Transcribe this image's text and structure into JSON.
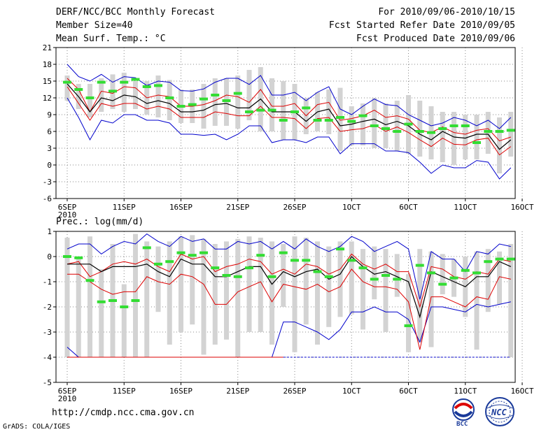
{
  "header": {
    "title": "DERF/NCC/BCC Monthly Forecast",
    "member_size": "Member Size=40",
    "variable": "Mean Surf. Temp.: °C",
    "period": "For 2010/09/06-2010/10/15",
    "fcst_started": "Fcst Started Refer Date 2010/09/05",
    "fcst_produced": "Fcst Produced Date 2010/09/06"
  },
  "footer": {
    "url": "http://cmdp.ncc.cma.gov.cn",
    "credit": "GrADS: COLA/IGES",
    "logo_bcc": "BCC",
    "logo_ncc": "NCC"
  },
  "colors": {
    "max_min": "#0000cc",
    "spread": "#dd0000",
    "mean": "#000000",
    "observed": "#33dd33",
    "bar": "#d3d3d3"
  },
  "chart_data": [
    {
      "type": "line",
      "title": "Mean Surf. Temp.: °C",
      "xlabel": "",
      "ylabel": "",
      "x_tick_labels": [
        "6SEP",
        "11SEP",
        "16SEP",
        "21SEP",
        "26SEP",
        "1OCT",
        "6OCT",
        "11OCT",
        "16OCT"
      ],
      "x_tick_days": [
        0,
        5,
        10,
        15,
        20,
        25,
        30,
        35,
        40
      ],
      "year_label": "2010",
      "ylim": [
        -6,
        21
      ],
      "y_ticks": [
        -6,
        -3,
        0,
        3,
        6,
        9,
        12,
        15,
        18,
        21
      ],
      "grid": true,
      "days": [
        0,
        1,
        2,
        3,
        4,
        5,
        6,
        7,
        8,
        9,
        10,
        11,
        12,
        13,
        14,
        15,
        16,
        17,
        18,
        19,
        20,
        21,
        22,
        23,
        24,
        25,
        26,
        27,
        28,
        29,
        30,
        31,
        32,
        33,
        34,
        35,
        36,
        37,
        38,
        39
      ],
      "series": [
        {
          "name": "max",
          "values": [
            18,
            15.8,
            15,
            16.2,
            14.8,
            15.8,
            15.6,
            14.2,
            15,
            14.8,
            13.3,
            13.2,
            13.6,
            14.8,
            15.5,
            15.5,
            14.4,
            16,
            12.5,
            12.5,
            13,
            11.5,
            13,
            14,
            10,
            9,
            10.5,
            11.8,
            10.8,
            10.6,
            9,
            8,
            7,
            7.5,
            8.5,
            8,
            7,
            8,
            6.5,
            8.5
          ]
        },
        {
          "name": "upper_spread",
          "values": [
            15.5,
            13.5,
            9.5,
            13.2,
            12.8,
            14,
            13.8,
            12,
            12.5,
            12.2,
            10.5,
            10.5,
            10.8,
            11.5,
            12.5,
            12.2,
            11.2,
            13.5,
            10.5,
            10.5,
            11,
            8.8,
            10.8,
            11.2,
            8,
            8.3,
            8.8,
            9.8,
            8.5,
            8.8,
            8.2,
            6.2,
            5.8,
            6.8,
            5.8,
            5.5,
            6.2,
            6.5,
            4.3,
            5
          ]
        },
        {
          "name": "mean",
          "values": [
            14.5,
            12.2,
            9.5,
            12,
            11.5,
            12.5,
            12.2,
            11,
            11.5,
            11,
            9.5,
            9.5,
            9.8,
            10.8,
            11,
            10.2,
            10.2,
            11.8,
            9.5,
            9.5,
            9.5,
            7.8,
            9.5,
            10,
            7,
            7.3,
            7.8,
            8.2,
            7.2,
            7.8,
            7,
            5.5,
            4.5,
            6,
            5,
            4.8,
            5.5,
            5.5,
            2.8,
            4.5
          ]
        },
        {
          "name": "lower_spread",
          "values": [
            14,
            11,
            8,
            11,
            10.5,
            11,
            11,
            10,
            10.5,
            10,
            8.5,
            8.5,
            8.5,
            9.5,
            9.2,
            8.8,
            8.8,
            10.5,
            8.5,
            8.5,
            8.3,
            6.5,
            8.3,
            8.5,
            6,
            6.3,
            6.5,
            7.2,
            6,
            6.8,
            5.8,
            4.5,
            3.3,
            4.8,
            3.7,
            3.6,
            4.5,
            4.8,
            1.8,
            3.3
          ]
        },
        {
          "name": "min",
          "values": [
            12,
            8.5,
            4.5,
            8,
            7.5,
            9,
            9,
            8,
            8,
            7.5,
            5.5,
            5.5,
            5.3,
            5.5,
            4.5,
            5.5,
            7,
            7,
            4,
            4.5,
            4.5,
            4,
            5,
            5,
            2,
            3.8,
            3.8,
            3.8,
            2.5,
            2.5,
            2.2,
            0.5,
            -1.5,
            0,
            -0.5,
            -0.5,
            0.8,
            0.5,
            -2.5,
            -0.5
          ]
        },
        {
          "name": "observed",
          "values": [
            14.8,
            13.5,
            12,
            14.8,
            13.2,
            14.8,
            15.3,
            14,
            14.2,
            12,
            10.5,
            10.8,
            11.8,
            12.5,
            11.5,
            12.8,
            9.5,
            9.8,
            9.8,
            8,
            9.5,
            10.2,
            8,
            8,
            8.5,
            7.8,
            8.8,
            7,
            6.5,
            6,
            7.3,
            6,
            5.8,
            6.5,
            7,
            7,
            4,
            6,
            6,
            6.2
          ]
        },
        {
          "name": "bar_top",
          "values": [
            16,
            14.5,
            14.5,
            15.5,
            16.2,
            16.5,
            15,
            15,
            16,
            15.2,
            13.5,
            13.5,
            14.5,
            15.5,
            15.5,
            16,
            17,
            17.5,
            15.5,
            15,
            14.5,
            12,
            13,
            13.5,
            13.8,
            10.5,
            11,
            12,
            11,
            11.5,
            12.5,
            11.5,
            10.5,
            9.5,
            9.5,
            9,
            9,
            9.5,
            8.5,
            9.5
          ]
        },
        {
          "name": "bar_bottom",
          "values": [
            11.5,
            10,
            8.5,
            9.5,
            10,
            9.5,
            10,
            9,
            8.5,
            8,
            7.5,
            7.5,
            6.5,
            7,
            7,
            6.5,
            8,
            6,
            6,
            4.5,
            4.5,
            5.5,
            6,
            5.5,
            2.5,
            3.5,
            3.5,
            3,
            3,
            2.5,
            2,
            1.5,
            1,
            0.5,
            0,
            1,
            1,
            2,
            -1.5,
            1.5
          ]
        }
      ]
    },
    {
      "type": "line",
      "title": "Prec.: log(mm/d)",
      "xlabel": "",
      "ylabel": "",
      "x_tick_labels": [
        "6SEP",
        "11SEP",
        "16SEP",
        "21SEP",
        "26SEP",
        "1OCT",
        "6OCT",
        "11OCT",
        "16OCT"
      ],
      "x_tick_days": [
        0,
        5,
        10,
        15,
        20,
        25,
        30,
        35,
        40
      ],
      "year_label": "2010",
      "ylim": [
        -5,
        1
      ],
      "y_ticks": [
        -5,
        -4,
        -3,
        -2,
        -1,
        0,
        1
      ],
      "grid": true,
      "days": [
        0,
        1,
        2,
        3,
        4,
        5,
        6,
        7,
        8,
        9,
        10,
        11,
        12,
        13,
        14,
        15,
        16,
        17,
        18,
        19,
        20,
        21,
        22,
        23,
        24,
        25,
        26,
        27,
        28,
        29,
        30,
        31,
        32,
        33,
        34,
        35,
        36,
        37,
        38,
        39
      ],
      "series": [
        {
          "name": "max",
          "values": [
            0.3,
            0.5,
            0.5,
            0.1,
            0.4,
            0.6,
            0.5,
            0.9,
            0.6,
            0.4,
            0.8,
            0.6,
            0.7,
            0.3,
            0.3,
            0.6,
            0.5,
            0.6,
            0.3,
            0.6,
            0.3,
            0.7,
            0.4,
            0.2,
            0.4,
            0.8,
            0.6,
            0.2,
            0.4,
            0.6,
            0.3,
            -1.7,
            0.2,
            -0.1,
            -0.1,
            -0.6,
            0.2,
            0.1,
            0.5,
            0.4
          ]
        },
        {
          "name": "upper_spread",
          "values": [
            -0.3,
            -0.2,
            -0.8,
            -0.6,
            -0.3,
            -0.2,
            -0.3,
            -0.1,
            -0.4,
            -0.6,
            0.1,
            -0.1,
            0.0,
            -0.6,
            -0.4,
            -0.3,
            -0.1,
            -0.2,
            -0.7,
            -0.5,
            -0.7,
            -0.3,
            -0.4,
            -0.7,
            -0.5,
            0.1,
            -0.3,
            -0.5,
            -0.3,
            -0.6,
            -0.6,
            -2.0,
            -0.4,
            -0.5,
            -0.8,
            -0.9,
            -0.6,
            -0.7,
            -0.1,
            -0.2
          ]
        },
        {
          "name": "mean",
          "values": [
            -0.3,
            -0.3,
            -0.3,
            -0.6,
            -0.4,
            -0.4,
            -0.4,
            -0.3,
            -0.6,
            -0.8,
            -0.1,
            -0.3,
            -0.3,
            -0.8,
            -0.8,
            -0.6,
            -0.4,
            -0.4,
            -1.1,
            -0.6,
            -0.8,
            -0.6,
            -0.5,
            -0.9,
            -0.7,
            0.0,
            -0.4,
            -0.7,
            -0.6,
            -0.8,
            -1.0,
            -2.4,
            -0.6,
            -0.8,
            -1.0,
            -1.2,
            -0.8,
            -0.8,
            -0.2,
            -0.4
          ]
        },
        {
          "name": "lower_spread",
          "values": [
            -0.7,
            -0.7,
            -1.0,
            -1.3,
            -1.5,
            -1.4,
            -1.4,
            -0.8,
            -1.0,
            -1.1,
            -0.7,
            -0.8,
            -1.1,
            -1.9,
            -1.9,
            -1.4,
            -1.2,
            -1.0,
            -1.8,
            -1.1,
            -1.2,
            -1.3,
            -1.1,
            -1.4,
            -1.2,
            -0.5,
            -1.0,
            -1.2,
            -1.2,
            -1.3,
            -1.8,
            -3.7,
            -1.6,
            -1.6,
            -1.8,
            -2.0,
            -1.6,
            -1.7,
            -0.8,
            -0.9
          ]
        },
        {
          "name": "min",
          "values": [
            -3.6,
            -4,
            -4,
            -4,
            -4,
            -4,
            -4,
            -4,
            -4,
            -4,
            -4,
            -4,
            -4,
            -4,
            -4,
            -4,
            -4,
            -4,
            -4,
            -2.6,
            -2.6,
            -2.8,
            -3.0,
            -3.3,
            -2.9,
            -2.2,
            -2.2,
            -2.0,
            -2.2,
            -2.2,
            -2.5,
            -3.4,
            -2.0,
            -2.0,
            -2.1,
            -2.2,
            -1.9,
            -2.0,
            -1.9,
            -1.8
          ]
        },
        {
          "name": "floor",
          "values": [
            -4,
            -4,
            -4,
            -4,
            -4,
            -4,
            -4,
            -4,
            -4,
            -4,
            -4,
            -4,
            -4,
            -4,
            -4,
            -4,
            -4,
            -4,
            -4,
            -4,
            -4,
            -4,
            -4,
            -4,
            -4,
            -4,
            -4,
            -4,
            -4,
            -4,
            -4,
            -4,
            -4,
            -4,
            -4,
            -4,
            -4,
            -4,
            -4,
            -4
          ]
        },
        {
          "name": "observed",
          "values": [
            0.0,
            -0.05,
            -0.95,
            -1.8,
            -1.75,
            -2.0,
            -1.75,
            0.35,
            -0.3,
            -0.2,
            0.15,
            0.05,
            0.15,
            -0.45,
            -0.75,
            -0.8,
            -0.45,
            0.05,
            -0.8,
            0.15,
            -0.15,
            -0.15,
            -0.6,
            -0.8,
            0.3,
            -0.15,
            -0.45,
            -0.9,
            -0.75,
            -0.9,
            -2.75,
            -0.35,
            -0.65,
            -1.1,
            -0.85,
            -0.55,
            -0.65,
            -0.2,
            -0.1,
            -0.1
          ]
        },
        {
          "name": "bar_top",
          "values": [
            0.75,
            0.0,
            0.8,
            -0.5,
            0.5,
            -1.1,
            0.9,
            0.6,
            0.4,
            0.6,
            0.8,
            0.85,
            0.7,
            0.5,
            0.6,
            0.7,
            0.8,
            0.75,
            0.6,
            0.5,
            0.8,
            0.75,
            0.6,
            0.4,
            0.6,
            0.6,
            0.3,
            0.4,
            0.3,
            0.1,
            -0.7,
            0.3,
            0.2,
            0.1,
            -0.1,
            0.0,
            0.2,
            0.3,
            0.2,
            0.5
          ]
        },
        {
          "name": "bar_bottom",
          "values": [
            -4,
            -4,
            -4,
            -4,
            -4,
            -4,
            -4,
            -4,
            -2.2,
            -3.5,
            -3.0,
            -2.7,
            -3.9,
            -3.5,
            -3.3,
            -4,
            -3.0,
            -3.0,
            -3.5,
            -2.0,
            -3.8,
            -2.7,
            -3.5,
            -2.8,
            -2.4,
            -2.3,
            -2.9,
            -1.7,
            -3.0,
            -1.6,
            -3.8,
            -3.4,
            -3.6,
            -1.5,
            -1.6,
            -2.4,
            -3.7,
            -2.2,
            -1.9,
            -4
          ]
        }
      ]
    }
  ]
}
